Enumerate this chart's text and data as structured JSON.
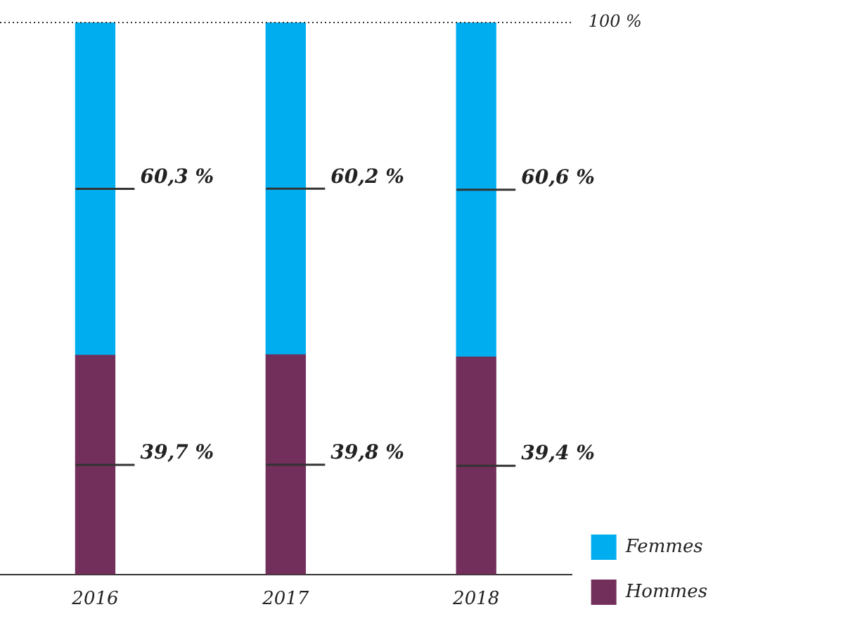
{
  "chart_data": {
    "type": "bar",
    "stacked": true,
    "categories": [
      "2016",
      "2017",
      "2018"
    ],
    "series": [
      {
        "name": "Hommes",
        "color": "#722f5b",
        "values": [
          39.7,
          39.8,
          39.4
        ],
        "value_labels": [
          "39,7 %",
          "39,8 %",
          "39,4 %"
        ]
      },
      {
        "name": "Femmes",
        "color": "#00aeef",
        "values": [
          60.3,
          60.2,
          60.6
        ],
        "value_labels": [
          "60,3 %",
          "60,2 %",
          "60,6 %"
        ]
      }
    ],
    "ylim": [
      0,
      100
    ],
    "tick_labels": "x",
    "grid": false,
    "legend": "bottom right",
    "ref_lines": [
      {
        "axis": "y",
        "value": 100,
        "label": "100 %",
        "line_style": "dotted",
        "color": "#333333"
      }
    ]
  }
}
